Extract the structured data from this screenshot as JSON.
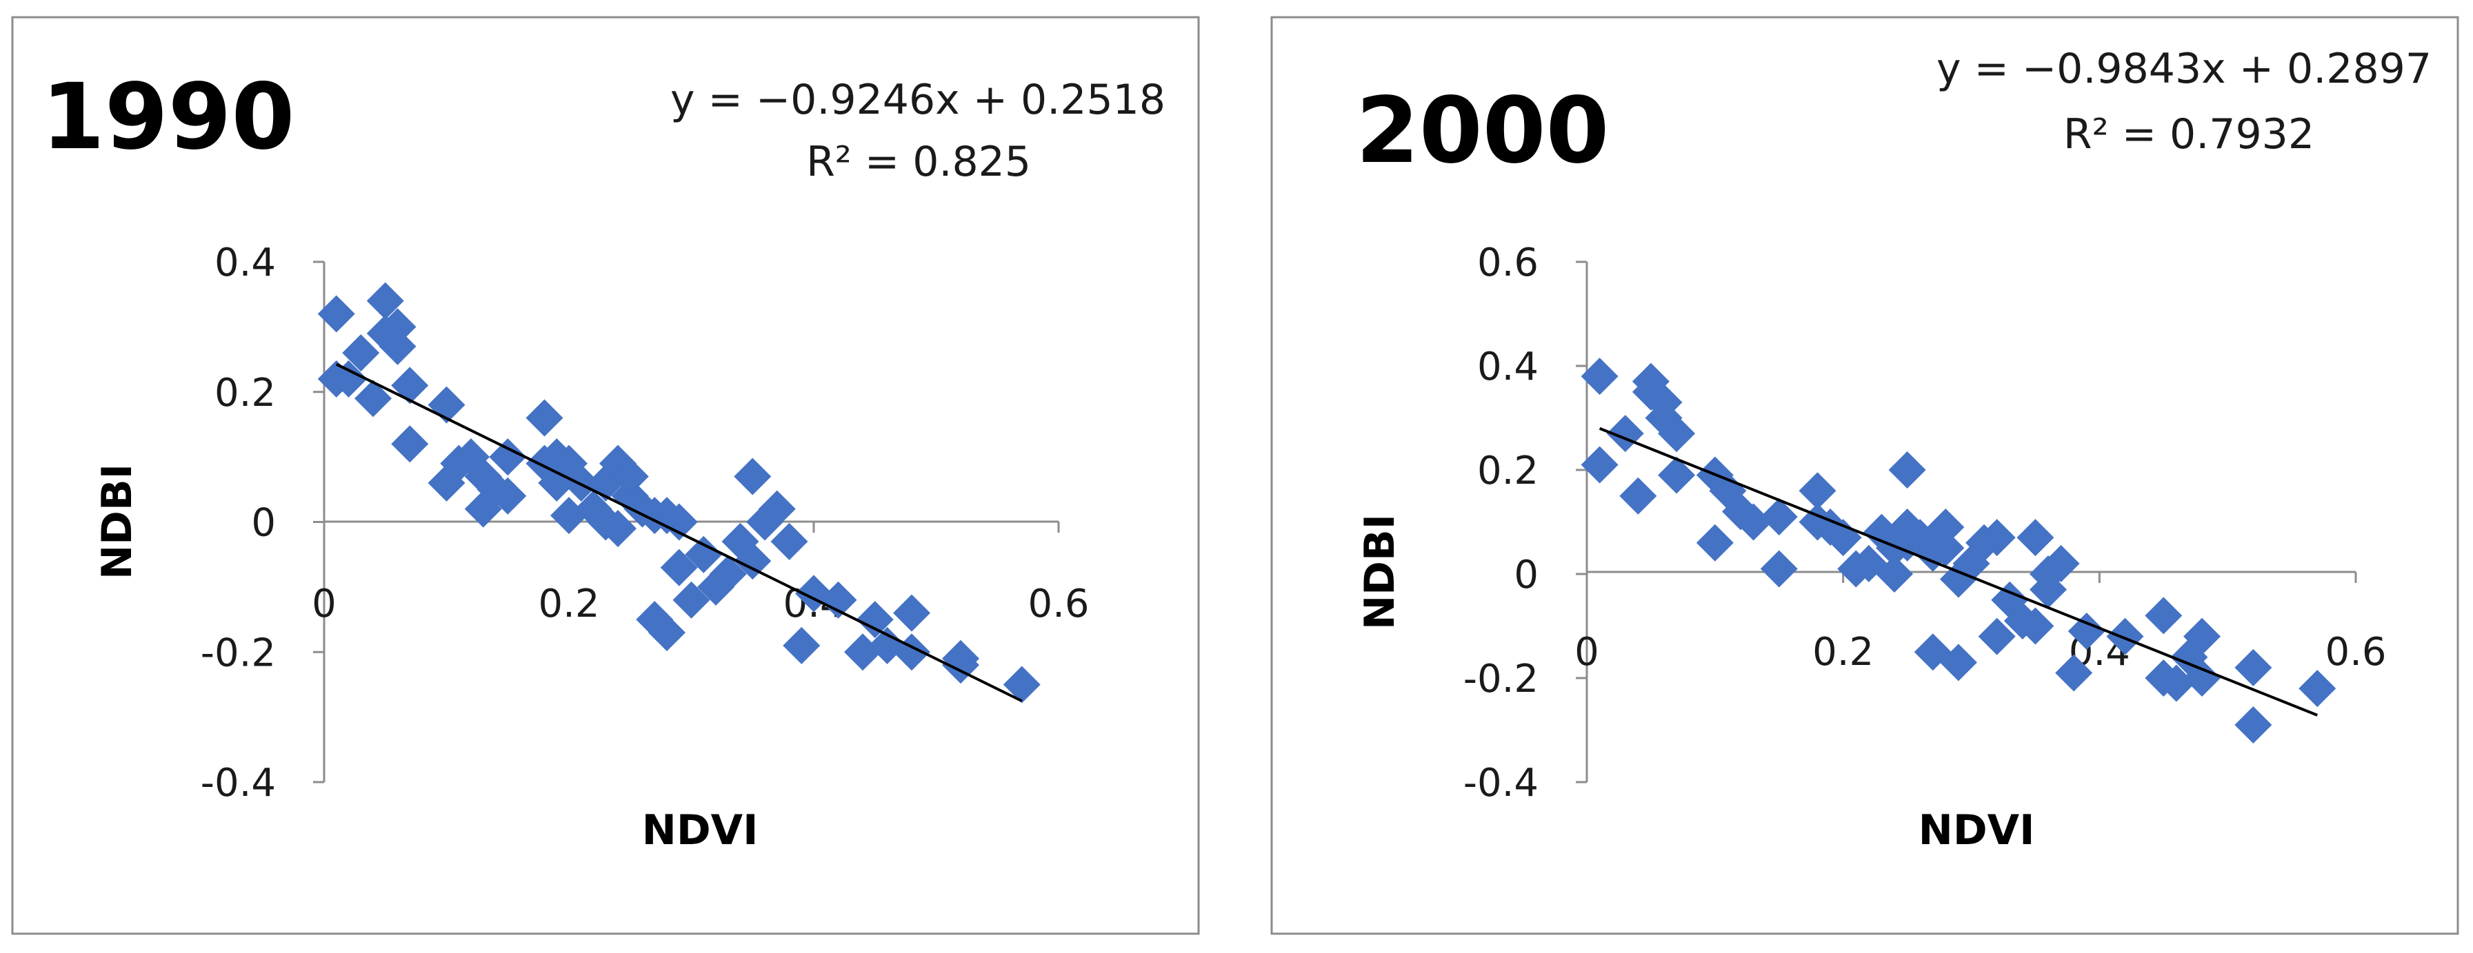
{
  "chart_data": [
    {
      "type": "scatter",
      "title": "1990",
      "xlabel": "NDVI",
      "ylabel": "NDBI",
      "xlim": [
        0,
        0.6
      ],
      "ylim": [
        -0.4,
        0.4
      ],
      "xticks": [
        0,
        0.2,
        0.4,
        0.6
      ],
      "yticks": [
        0.4,
        0.2,
        0,
        -0.2,
        -0.4
      ],
      "xtick_labels": [
        "0",
        "0.2",
        "0.4",
        "0.6"
      ],
      "ytick_labels": [
        "0.4",
        "0.2",
        "0",
        "-0.2",
        "-0.4"
      ],
      "grid": false,
      "legend": "none",
      "marker_color": "#4472C4",
      "trendline": {
        "slope": -0.9246,
        "intercept": 0.2518,
        "x_range": [
          0.01,
          0.57
        ]
      },
      "equation_label": "y = −0.9246x + 0.2518",
      "r2_label": "R² = 0.825",
      "series": [
        {
          "x": [
            0.01,
            0.01,
            0.02,
            0.03,
            0.04,
            0.05,
            0.05,
            0.06,
            0.06,
            0.07,
            0.07,
            0.1,
            0.1,
            0.11,
            0.12,
            0.13,
            0.13,
            0.14,
            0.15,
            0.15,
            0.18,
            0.18,
            0.19,
            0.19,
            0.2,
            0.2,
            0.21,
            0.22,
            0.23,
            0.23,
            0.24,
            0.24,
            0.25,
            0.25,
            0.26,
            0.27,
            0.27,
            0.28,
            0.28,
            0.29,
            0.29,
            0.3,
            0.31,
            0.32,
            0.33,
            0.34,
            0.35,
            0.35,
            0.36,
            0.37,
            0.38,
            0.39,
            0.4,
            0.42,
            0.44,
            0.45,
            0.46,
            0.48,
            0.48,
            0.52,
            0.52,
            0.57
          ],
          "y": [
            0.32,
            0.22,
            0.22,
            0.26,
            0.19,
            0.34,
            0.29,
            0.3,
            0.27,
            0.21,
            0.12,
            0.18,
            0.06,
            0.09,
            0.1,
            0.02,
            0.07,
            0.05,
            0.1,
            0.04,
            0.16,
            0.09,
            0.1,
            0.06,
            0.01,
            0.09,
            0.06,
            0.02,
            0.06,
            0.0,
            -0.01,
            0.09,
            0.04,
            0.07,
            0.02,
            -0.15,
            0.01,
            0.01,
            -0.17,
            -0.07,
            0.0,
            -0.12,
            -0.05,
            -0.1,
            -0.08,
            -0.03,
            0.07,
            -0.06,
            0.0,
            0.02,
            -0.03,
            -0.19,
            -0.11,
            -0.12,
            -0.2,
            -0.15,
            -0.19,
            -0.14,
            -0.2,
            -0.21,
            -0.22,
            -0.25
          ]
        }
      ]
    },
    {
      "type": "scatter",
      "title": "2000",
      "xlabel": "NDVI",
      "ylabel": "NDBI",
      "xlim": [
        0,
        0.6
      ],
      "ylim": [
        -0.4,
        0.6
      ],
      "xticks": [
        0,
        0.2,
        0.4,
        0.6
      ],
      "yticks": [
        0.6,
        0.4,
        0.2,
        0,
        -0.2,
        -0.4
      ],
      "xtick_labels": [
        "0",
        "0.2",
        "0.4",
        "0.6"
      ],
      "ytick_labels": [
        "0.6",
        "0.4",
        "0.2",
        "0",
        "-0.2",
        "-0.4"
      ],
      "grid": false,
      "legend": "none",
      "marker_color": "#4472C4",
      "trendline": {
        "slope": -0.9843,
        "intercept": 0.2897,
        "x_range": [
          0.01,
          0.57
        ]
      },
      "equation_label": "y = −0.9843x + 0.2897",
      "r2_label": "R² = 0.7932",
      "series": [
        {
          "x": [
            0.01,
            0.01,
            0.03,
            0.04,
            0.05,
            0.05,
            0.06,
            0.06,
            0.07,
            0.07,
            0.1,
            0.1,
            0.11,
            0.12,
            0.13,
            0.15,
            0.15,
            0.18,
            0.18,
            0.19,
            0.2,
            0.21,
            0.22,
            0.23,
            0.24,
            0.24,
            0.25,
            0.25,
            0.25,
            0.26,
            0.27,
            0.27,
            0.28,
            0.28,
            0.29,
            0.29,
            0.3,
            0.31,
            0.32,
            0.32,
            0.33,
            0.34,
            0.35,
            0.35,
            0.36,
            0.36,
            0.37,
            0.38,
            0.39,
            0.42,
            0.45,
            0.45,
            0.46,
            0.47,
            0.48,
            0.48,
            0.52,
            0.52,
            0.57
          ],
          "y": [
            0.38,
            0.21,
            0.27,
            0.15,
            0.37,
            0.35,
            0.33,
            0.3,
            0.27,
            0.19,
            0.19,
            0.06,
            0.16,
            0.12,
            0.1,
            0.01,
            0.11,
            0.16,
            0.1,
            0.09,
            0.07,
            0.01,
            0.02,
            0.08,
            0.0,
            0.05,
            0.2,
            0.09,
            0.06,
            0.07,
            -0.15,
            0.04,
            0.09,
            0.05,
            -0.01,
            -0.17,
            0.02,
            0.06,
            0.07,
            -0.12,
            -0.05,
            -0.09,
            -0.1,
            0.07,
            -0.03,
            0.0,
            0.02,
            -0.19,
            -0.11,
            -0.12,
            -0.08,
            -0.2,
            -0.21,
            -0.16,
            -0.2,
            -0.12,
            -0.29,
            -0.18,
            -0.22
          ]
        }
      ]
    }
  ]
}
